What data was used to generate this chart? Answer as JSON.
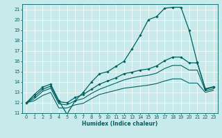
{
  "title": "",
  "xlabel": "Humidex (Indice chaleur)",
  "ylabel": "",
  "xlim": [
    -0.5,
    23.5
  ],
  "ylim": [
    11,
    21.5
  ],
  "yticks": [
    11,
    12,
    13,
    14,
    15,
    16,
    17,
    18,
    19,
    20,
    21
  ],
  "xticks": [
    0,
    1,
    2,
    3,
    4,
    5,
    6,
    7,
    8,
    9,
    10,
    11,
    12,
    13,
    14,
    15,
    16,
    17,
    18,
    19,
    20,
    21,
    22,
    23
  ],
  "bg_color": "#c8eaea",
  "line_color": "#006060",
  "series": {
    "line1": {
      "x": [
        0,
        1,
        2,
        3,
        4,
        5,
        6,
        7,
        8,
        9,
        10,
        11,
        12,
        13,
        14,
        15,
        16,
        17,
        18,
        19,
        20,
        21,
        22,
        23
      ],
      "y": [
        12.0,
        12.8,
        13.5,
        13.8,
        12.2,
        10.9,
        12.2,
        13.0,
        14.0,
        14.8,
        15.0,
        15.5,
        16.0,
        17.2,
        18.5,
        20.0,
        20.3,
        21.1,
        21.2,
        21.2,
        19.0,
        15.9,
        13.3,
        13.5
      ],
      "marker": "D",
      "ms": 1.8,
      "lw": 0.9,
      "zorder": 4
    },
    "line2": {
      "x": [
        0,
        1,
        2,
        3,
        4,
        5,
        6,
        7,
        8,
        9,
        10,
        11,
        12,
        13,
        14,
        15,
        16,
        17,
        18,
        19,
        20,
        21,
        22,
        23
      ],
      "y": [
        12.0,
        12.6,
        13.3,
        13.6,
        12.1,
        12.0,
        12.5,
        12.8,
        13.3,
        13.8,
        14.1,
        14.4,
        14.8,
        14.95,
        15.15,
        15.25,
        15.55,
        16.05,
        16.4,
        16.4,
        15.85,
        15.85,
        13.35,
        13.55
      ],
      "marker": "D",
      "ms": 1.8,
      "lw": 0.9,
      "zorder": 3
    },
    "line3": {
      "x": [
        0,
        1,
        2,
        3,
        4,
        5,
        6,
        7,
        8,
        9,
        10,
        11,
        12,
        13,
        14,
        15,
        16,
        17,
        18,
        19,
        20,
        21,
        22,
        23
      ],
      "y": [
        12.0,
        12.4,
        13.1,
        13.4,
        11.9,
        11.8,
        12.2,
        12.4,
        12.9,
        13.3,
        13.6,
        13.9,
        14.2,
        14.4,
        14.55,
        14.65,
        14.85,
        15.3,
        15.6,
        15.6,
        15.15,
        15.15,
        13.15,
        13.35
      ],
      "marker": null,
      "ms": 0,
      "lw": 0.8,
      "zorder": 2
    },
    "line4": {
      "x": [
        0,
        1,
        2,
        3,
        4,
        5,
        6,
        7,
        8,
        9,
        10,
        11,
        12,
        13,
        14,
        15,
        16,
        17,
        18,
        19,
        20,
        21,
        22,
        23
      ],
      "y": [
        12.0,
        12.2,
        12.7,
        13.0,
        11.5,
        11.5,
        11.8,
        11.95,
        12.4,
        12.8,
        13.0,
        13.2,
        13.4,
        13.5,
        13.6,
        13.7,
        13.85,
        14.1,
        14.3,
        14.3,
        13.9,
        13.9,
        13.0,
        13.2
      ],
      "marker": null,
      "ms": 0,
      "lw": 0.8,
      "zorder": 2
    }
  },
  "xlabel_fontsize": 5.5,
  "tick_fontsize": 4.8,
  "grid_color": "#ffffff",
  "grid_lw": 0.5,
  "spine_color": "#006060",
  "tick_color": "#006060",
  "label_color": "#006060"
}
